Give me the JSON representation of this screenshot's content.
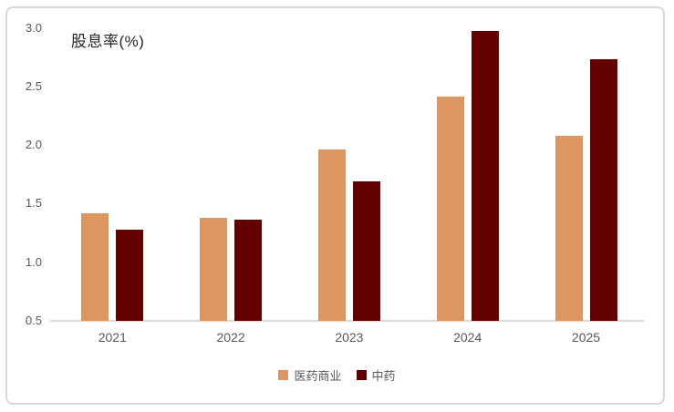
{
  "chart_data": {
    "type": "bar",
    "title": "股息率(%)",
    "categories": [
      "2021",
      "2022",
      "2023",
      "2024",
      "2025"
    ],
    "series": [
      {
        "name": "医药商业",
        "color": "#DD9660",
        "values": [
          1.42,
          1.38,
          1.96,
          2.41,
          2.08
        ]
      },
      {
        "name": "中药",
        "color": "#630000",
        "values": [
          1.28,
          1.36,
          1.69,
          2.97,
          2.73
        ]
      }
    ],
    "ylim": [
      0.5,
      3.0
    ],
    "yticks": [
      "0.5",
      "1.0",
      "1.5",
      "2.0",
      "2.5",
      "3.0"
    ],
    "xlabel": "",
    "ylabel": "",
    "grid": false,
    "legend_position": "bottom"
  },
  "colors": {
    "frame_border": "#D8D8D8",
    "axis_line": "#D9D9D9",
    "tick_text": "#595959",
    "title_text": "#262626",
    "background": "#FFFFFF"
  }
}
